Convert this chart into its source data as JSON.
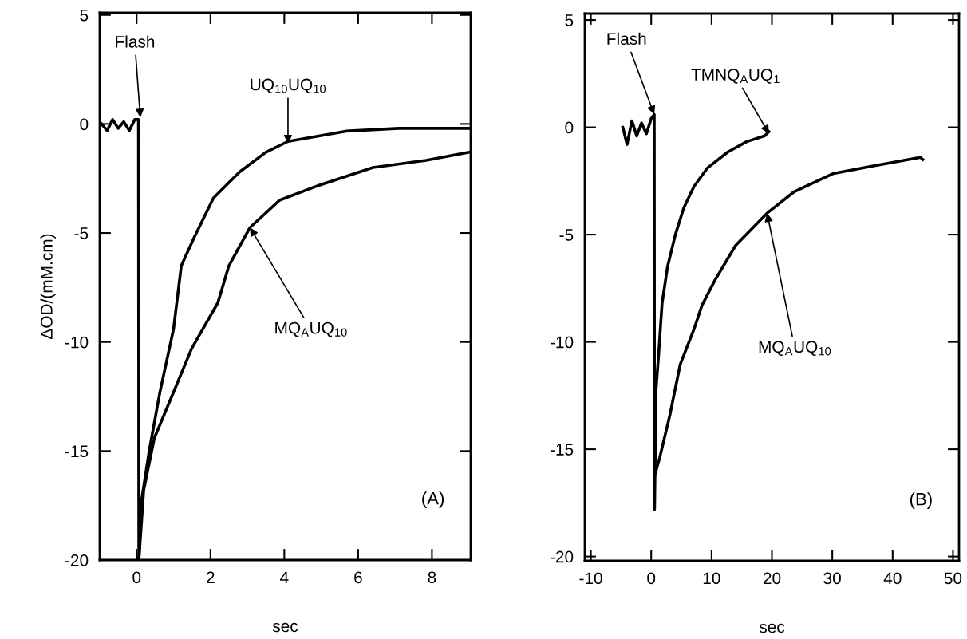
{
  "chart_data": [
    {
      "type": "line",
      "xlabel": "sec",
      "ylabel": "ΔOD/(mM.cm)",
      "xlim": [
        -1,
        9.05
      ],
      "ylim": [
        -20,
        5.1
      ],
      "xticks": [
        0,
        2,
        4,
        6,
        8
      ],
      "yticks": [
        5,
        0,
        -5,
        -10,
        -15,
        -20
      ],
      "grid": false,
      "series": [
        {
          "color": "#000000",
          "x": [
            -0.95,
            -0.8,
            -0.65,
            -0.5,
            -0.35,
            -0.2,
            -0.05,
            0.05,
            0.06,
            0.13,
            0.35,
            0.63,
            1.0,
            1.21,
            1.56,
            2.08,
            2.79,
            3.5,
            4.1,
            5.67,
            7.1,
            9.0
          ],
          "values": [
            0,
            -0.3,
            0.2,
            -0.2,
            0.1,
            -0.3,
            0.2,
            0.2,
            -20,
            -17.3,
            -14.9,
            -12.3,
            -9.4,
            -6.5,
            -5.2,
            -3.4,
            -2.2,
            -1.3,
            -0.8,
            -0.33,
            -0.2,
            -0.2
          ]
        },
        {
          "color": "#000000",
          "x": [
            0.06,
            0.19,
            0.48,
            1.0,
            1.49,
            2.2,
            2.5,
            3.07,
            3.87,
            4.96,
            6.4,
            7.84,
            9.0
          ],
          "values": [
            -20,
            -16.8,
            -14.4,
            -12.3,
            -10.3,
            -8.2,
            -6.5,
            -4.75,
            -3.5,
            -2.8,
            -2.0,
            -1.67,
            -1.3
          ]
        }
      ],
      "annotations": [
        {
          "text": "Flash",
          "x": 0.1,
          "y": 0.3
        },
        {
          "text": "UQ$_{10}$UQ$_{10}$",
          "x": 4.1,
          "y": -0.9
        },
        {
          "text": "MQ$_{A}$UQ$_{10}$",
          "x": 3.07,
          "y": -4.75
        },
        "(A)"
      ]
    },
    {
      "type": "line",
      "xlabel": "sec",
      "xlim": [
        -11,
        51
      ],
      "ylim": [
        -20.2,
        5.3
      ],
      "xticks": [
        -10,
        0,
        10,
        20,
        30,
        40,
        50
      ],
      "yticks": [
        5,
        0,
        -5,
        -10,
        -15,
        -20
      ],
      "grid": false,
      "series": [
        {
          "color": "#000000",
          "x": [
            -4.7,
            -4.0,
            -3.2,
            -2.4,
            -1.6,
            -0.8,
            0.0,
            0.5,
            0.55,
            0.8,
            1.2,
            1.8,
            2.7,
            4.0,
            5.4,
            7.1,
            9.3,
            12.7,
            15.8,
            18.8,
            19.5
          ],
          "values": [
            0,
            -0.8,
            0.3,
            -0.4,
            0.2,
            -0.3,
            0.4,
            0.6,
            -17.8,
            -12.2,
            -10.7,
            -8.2,
            -6.5,
            -5.0,
            -3.75,
            -2.75,
            -1.9,
            -1.15,
            -0.67,
            -0.4,
            -0.2
          ]
        },
        {
          "color": "#000000",
          "x": [
            0.55,
            1.4,
            3.1,
            4.8,
            7.1,
            8.4,
            10.6,
            14.0,
            19.2,
            23.7,
            30.2,
            36.8,
            44.6,
            45.0
          ],
          "values": [
            -16.25,
            -15.4,
            -13.4,
            -11.05,
            -9.4,
            -8.3,
            -7.1,
            -5.5,
            -4.0,
            -3.0,
            -2.15,
            -1.8,
            -1.4,
            -1.5
          ]
        }
      ],
      "annotations": [
        {
          "text": "Flash",
          "x": 0.5,
          "y": 0.6
        },
        {
          "text": "TMNQ$_{A}$UQ$_{1}$",
          "x": 19.5,
          "y": -0.3
        },
        {
          "text": "MQ$_{A}$UQ$_{10}$",
          "x": 19.2,
          "y": -4.0
        },
        "(B)"
      ]
    }
  ]
}
